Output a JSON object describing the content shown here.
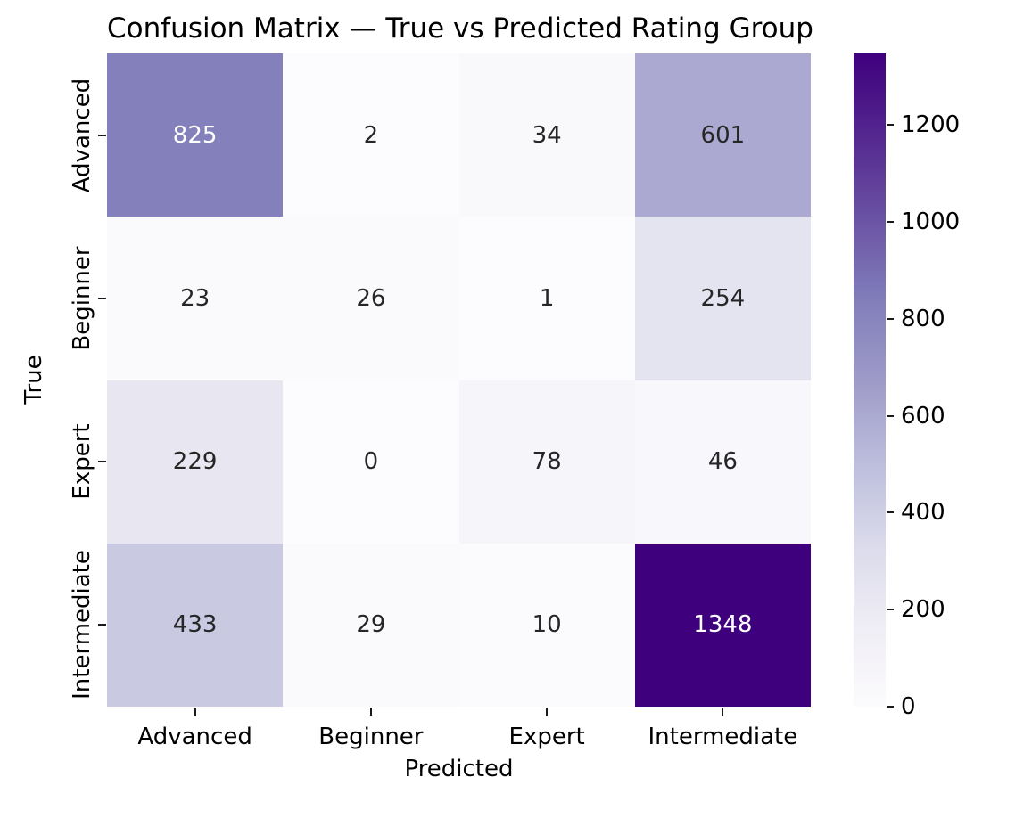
{
  "chart_data": {
    "type": "heatmap",
    "title": "Confusion Matrix — True vs Predicted Rating Group",
    "xlabel": "Predicted",
    "ylabel": "True",
    "x_categories": [
      "Advanced",
      "Beginner",
      "Expert",
      "Intermediate"
    ],
    "y_categories": [
      "Advanced",
      "Beginner",
      "Expert",
      "Intermediate"
    ],
    "matrix": [
      [
        825,
        2,
        34,
        601
      ],
      [
        23,
        26,
        1,
        254
      ],
      [
        229,
        0,
        78,
        46
      ],
      [
        433,
        29,
        10,
        1348
      ]
    ],
    "vmin": 0,
    "vmax": 1348,
    "colorbar_ticks": [
      0,
      200,
      400,
      600,
      800,
      1000,
      1200
    ],
    "colormap": {
      "name": "Purples",
      "anchors": [
        {
          "pos": 0.0,
          "color": "#fcfbfd"
        },
        {
          "pos": 0.125,
          "color": "#efedf5"
        },
        {
          "pos": 0.25,
          "color": "#dadaeb"
        },
        {
          "pos": 0.375,
          "color": "#bcbddc"
        },
        {
          "pos": 0.5,
          "color": "#9e9ac8"
        },
        {
          "pos": 0.625,
          "color": "#807dba"
        },
        {
          "pos": 0.75,
          "color": "#6a51a3"
        },
        {
          "pos": 0.875,
          "color": "#54278f"
        },
        {
          "pos": 1.0,
          "color": "#3f007d"
        }
      ]
    },
    "annotation_colors": {
      "dark": "#262626",
      "light": "#ffffff"
    },
    "background": "#ffffff",
    "legend_position": "right-colorbar",
    "grid": false
  }
}
